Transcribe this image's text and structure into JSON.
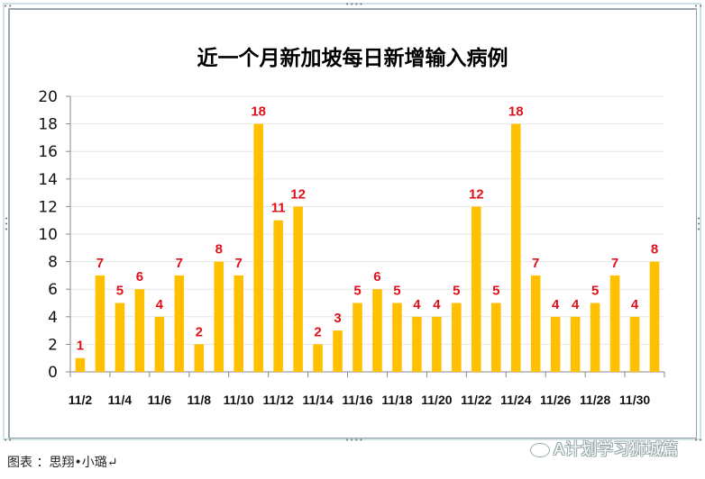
{
  "chart_data": {
    "type": "bar",
    "title": "近一个月新加坡每日新增输入病例",
    "xlabel": "",
    "ylabel": "",
    "ylim": [
      0,
      20
    ],
    "yticks": [
      0,
      2,
      4,
      6,
      8,
      10,
      12,
      14,
      16,
      18,
      20
    ],
    "grid": true,
    "legend": null,
    "bar_color": "#FFC000",
    "label_color": "#E0101A",
    "categories": [
      "11/2",
      "11/3",
      "11/4",
      "11/5",
      "11/6",
      "11/7",
      "11/8",
      "11/9",
      "11/10",
      "11/11",
      "11/12",
      "11/13",
      "11/14",
      "11/15",
      "11/16",
      "11/17",
      "11/18",
      "11/19",
      "11/20",
      "11/21",
      "11/22",
      "11/23",
      "11/24",
      "11/25",
      "11/26",
      "11/27",
      "11/28",
      "11/29",
      "11/30",
      "12/1"
    ],
    "x_tick_labels": [
      "11/2",
      "11/4",
      "11/6",
      "11/8",
      "11/10",
      "11/12",
      "11/14",
      "11/16",
      "11/18",
      "11/20",
      "11/22",
      "11/24",
      "11/26",
      "11/28",
      "11/30"
    ],
    "values": [
      1,
      7,
      5,
      6,
      4,
      7,
      2,
      8,
      7,
      18,
      11,
      12,
      2,
      3,
      5,
      6,
      5,
      4,
      4,
      5,
      12,
      5,
      18,
      7,
      4,
      4,
      5,
      7,
      4,
      8
    ]
  },
  "caption": "图表 ：思翔•小璐↵",
  "watermark": "A计划学习狮城篇"
}
